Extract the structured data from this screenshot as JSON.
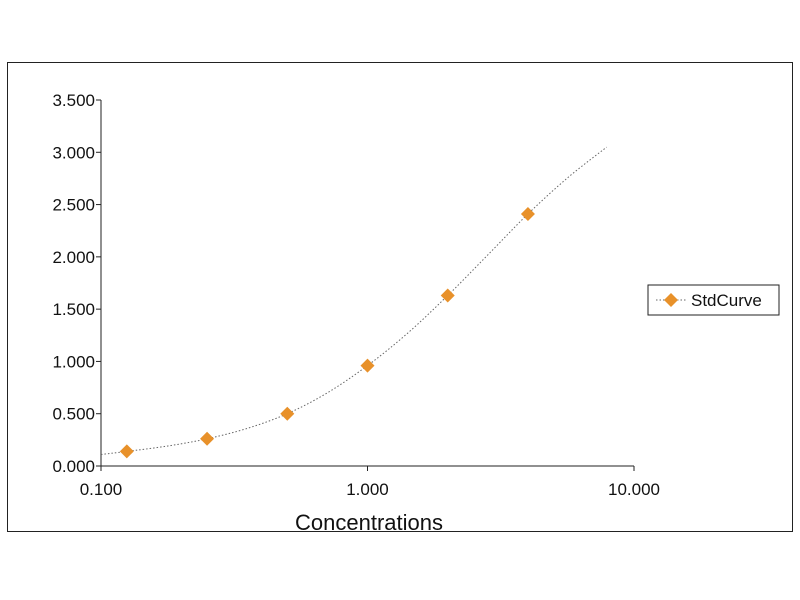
{
  "chart_data": {
    "type": "scatter",
    "title": "",
    "xlabel": "Concentrations",
    "ylabel": "",
    "x_scale": "log",
    "xlim": [
      0.1,
      10
    ],
    "ylim": [
      0,
      3.5
    ],
    "x_ticks": [
      {
        "value": 0.1,
        "label": "0.100"
      },
      {
        "value": 1,
        "label": "1.000"
      },
      {
        "value": 10,
        "label": "10.000"
      }
    ],
    "y_ticks": [
      {
        "value": 0,
        "label": "0.000"
      },
      {
        "value": 0.5,
        "label": "0.500"
      },
      {
        "value": 1,
        "label": "1.000"
      },
      {
        "value": 1.5,
        "label": "1.500"
      },
      {
        "value": 2,
        "label": "2.000"
      },
      {
        "value": 2.5,
        "label": "2.500"
      },
      {
        "value": 3,
        "label": "3.000"
      },
      {
        "value": 3.5,
        "label": "3.500"
      }
    ],
    "grid": false,
    "legend_position": "right",
    "series": [
      {
        "name": "StdCurve",
        "marker": "diamond",
        "color": "#E8912A",
        "points": [
          {
            "x": 0.125,
            "y": 0.14
          },
          {
            "x": 0.25,
            "y": 0.26
          },
          {
            "x": 0.5,
            "y": 0.5
          },
          {
            "x": 1.0,
            "y": 0.96
          },
          {
            "x": 2.0,
            "y": 1.63
          },
          {
            "x": 4.0,
            "y": 2.41
          }
        ],
        "fit_curve": {
          "style": "dotted",
          "color": "#666666",
          "points": [
            {
              "x": 0.1,
              "y": 0.11
            },
            {
              "x": 0.125,
              "y": 0.14
            },
            {
              "x": 0.177,
              "y": 0.19
            },
            {
              "x": 0.25,
              "y": 0.26
            },
            {
              "x": 0.354,
              "y": 0.36
            },
            {
              "x": 0.5,
              "y": 0.5
            },
            {
              "x": 0.707,
              "y": 0.7
            },
            {
              "x": 1.0,
              "y": 0.96
            },
            {
              "x": 1.414,
              "y": 1.27
            },
            {
              "x": 2.0,
              "y": 1.63
            },
            {
              "x": 2.83,
              "y": 2.02
            },
            {
              "x": 4.0,
              "y": 2.41
            },
            {
              "x": 5.66,
              "y": 2.76
            },
            {
              "x": 7.9,
              "y": 3.05
            }
          ]
        }
      }
    ]
  }
}
